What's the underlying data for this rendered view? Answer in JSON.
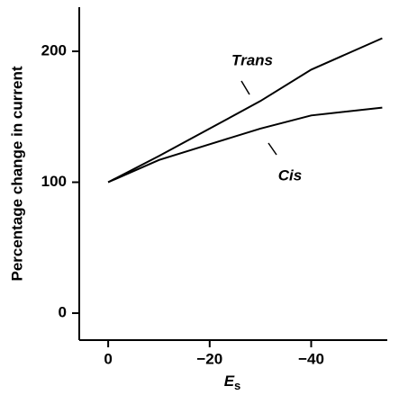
{
  "chart_data": {
    "type": "line",
    "x_label": {
      "text": "E",
      "subscript": "s"
    },
    "y_label": "Percentage change in current",
    "x": [
      0,
      -10,
      -20,
      -30,
      -40,
      -54
    ],
    "series": [
      {
        "name": "Trans",
        "color": "#000000",
        "values": [
          100,
          120,
          141,
          162,
          186,
          210
        ]
      },
      {
        "name": "Cis",
        "color": "#000000",
        "values": [
          100,
          117,
          129,
          141,
          151,
          157
        ]
      }
    ],
    "xlim": [
      5.7,
      -55
    ],
    "ylim": [
      -20.6,
      233.7
    ],
    "xticks": [
      0,
      {
        "value": -20,
        "label": "−20"
      },
      {
        "value": -40,
        "label": "−40"
      }
    ],
    "yticks": [
      0,
      100,
      200
    ]
  }
}
